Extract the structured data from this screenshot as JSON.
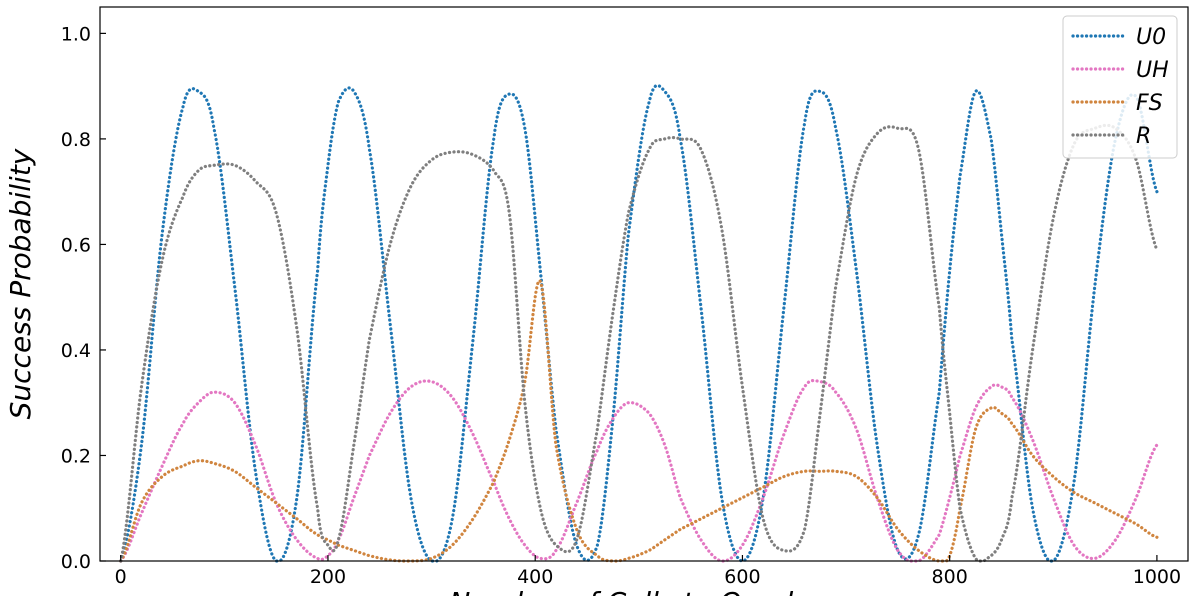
{
  "chart_data": {
    "type": "scatter",
    "title": "",
    "xlabel": "Number of Calls to Oracle",
    "ylabel": "Success Probability",
    "xlim": [
      -20,
      1030
    ],
    "ylim": [
      0,
      1.05
    ],
    "xticks": [
      0,
      200,
      400,
      600,
      800,
      1000
    ],
    "yticks": [
      0.0,
      0.2,
      0.4,
      0.6,
      0.8,
      1.0
    ],
    "legend_position": "top-right",
    "grid": false,
    "x": [
      0,
      20,
      40,
      60,
      75,
      90,
      110,
      130,
      150,
      170,
      190,
      200,
      210,
      225,
      240,
      260,
      280,
      300,
      320,
      340,
      360,
      375,
      390,
      405,
      420,
      440,
      460,
      475,
      490,
      510,
      525,
      540,
      560,
      580,
      600,
      620,
      640,
      660,
      675,
      690,
      710,
      730,
      750,
      770,
      790,
      800,
      810,
      825,
      840,
      850,
      860,
      880,
      900,
      920,
      940,
      960,
      980,
      1000
    ],
    "series": [
      {
        "name": "U0",
        "color": "#1f77b4",
        "values": [
          0.0,
          0.22,
          0.62,
          0.86,
          0.89,
          0.82,
          0.52,
          0.17,
          0.0,
          0.12,
          0.55,
          0.75,
          0.87,
          0.89,
          0.78,
          0.45,
          0.12,
          0.0,
          0.08,
          0.42,
          0.8,
          0.885,
          0.82,
          0.55,
          0.25,
          0.03,
          0.03,
          0.27,
          0.62,
          0.87,
          0.89,
          0.8,
          0.48,
          0.12,
          0.0,
          0.12,
          0.48,
          0.83,
          0.89,
          0.82,
          0.55,
          0.22,
          0.02,
          0.05,
          0.32,
          0.55,
          0.73,
          0.89,
          0.8,
          0.62,
          0.42,
          0.1,
          0.0,
          0.15,
          0.52,
          0.8,
          0.88,
          0.7
        ]
      },
      {
        "name": "UH",
        "color": "#e377c2",
        "values": [
          0.0,
          0.09,
          0.18,
          0.26,
          0.3,
          0.32,
          0.3,
          0.22,
          0.11,
          0.04,
          0.005,
          0.01,
          0.04,
          0.12,
          0.2,
          0.28,
          0.33,
          0.34,
          0.31,
          0.24,
          0.15,
          0.08,
          0.03,
          0.005,
          0.02,
          0.11,
          0.21,
          0.27,
          0.3,
          0.28,
          0.22,
          0.12,
          0.04,
          0.0,
          0.03,
          0.12,
          0.24,
          0.33,
          0.34,
          0.32,
          0.25,
          0.12,
          0.02,
          0.0,
          0.05,
          0.12,
          0.2,
          0.29,
          0.33,
          0.33,
          0.31,
          0.23,
          0.12,
          0.03,
          0.005,
          0.04,
          0.12,
          0.22
        ]
      },
      {
        "name": "FS",
        "color": "#d0853f",
        "values": [
          0.0,
          0.11,
          0.16,
          0.18,
          0.19,
          0.185,
          0.17,
          0.14,
          0.11,
          0.08,
          0.05,
          0.04,
          0.03,
          0.02,
          0.01,
          0.002,
          0.0,
          0.005,
          0.03,
          0.08,
          0.15,
          0.23,
          0.34,
          0.53,
          0.22,
          0.06,
          0.01,
          0.0,
          0.005,
          0.02,
          0.04,
          0.06,
          0.08,
          0.1,
          0.12,
          0.14,
          0.16,
          0.17,
          0.17,
          0.17,
          0.16,
          0.12,
          0.06,
          0.02,
          0.0,
          0.01,
          0.1,
          0.25,
          0.29,
          0.28,
          0.26,
          0.2,
          0.16,
          0.13,
          0.11,
          0.09,
          0.07,
          0.045
        ]
      },
      {
        "name": "R",
        "color": "#7f7f7f",
        "values": [
          0.0,
          0.33,
          0.57,
          0.69,
          0.74,
          0.75,
          0.75,
          0.72,
          0.66,
          0.44,
          0.1,
          0.03,
          0.04,
          0.22,
          0.42,
          0.6,
          0.71,
          0.76,
          0.775,
          0.77,
          0.74,
          0.66,
          0.3,
          0.1,
          0.03,
          0.04,
          0.25,
          0.47,
          0.66,
          0.78,
          0.8,
          0.8,
          0.78,
          0.63,
          0.33,
          0.08,
          0.02,
          0.06,
          0.28,
          0.52,
          0.73,
          0.81,
          0.82,
          0.78,
          0.48,
          0.28,
          0.1,
          0.005,
          0.01,
          0.04,
          0.12,
          0.4,
          0.65,
          0.79,
          0.82,
          0.82,
          0.76,
          0.59
        ]
      }
    ]
  }
}
